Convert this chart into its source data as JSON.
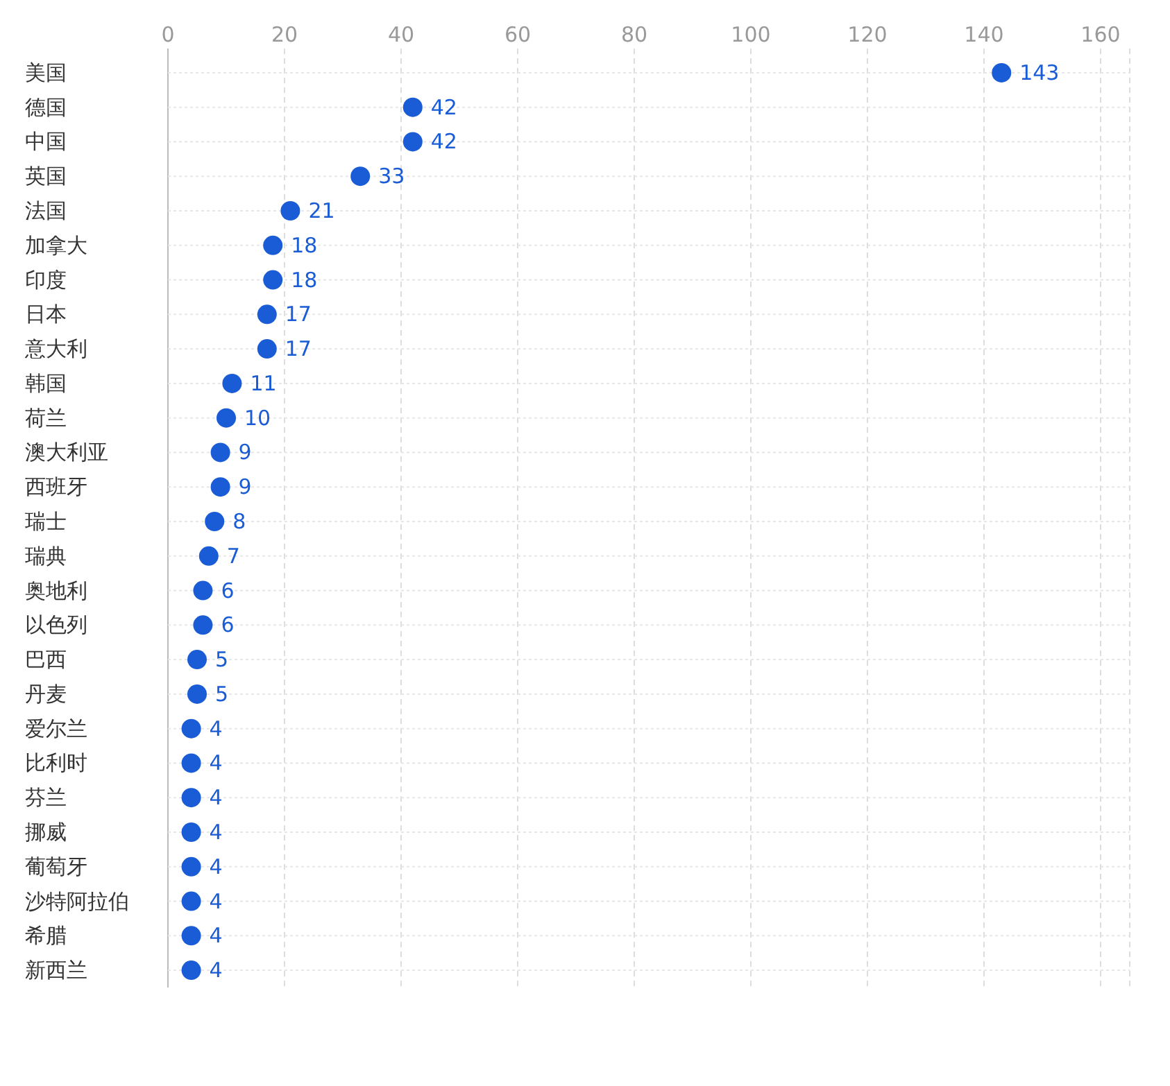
{
  "chart_data": {
    "type": "scatter",
    "orientation": "horizontal",
    "categories": [
      "美国",
      "德国",
      "中国",
      "英国",
      "法国",
      "加拿大",
      "印度",
      "日本",
      "意大利",
      "韩国",
      "荷兰",
      "澳大利亚",
      "西班牙",
      "瑞士",
      "瑞典",
      "奥地利",
      "以色列",
      "巴西",
      "丹麦",
      "爱尔兰",
      "比利时",
      "芬兰",
      "挪威",
      "葡萄牙",
      "沙特阿拉伯",
      "希腊",
      "新西兰"
    ],
    "values": [
      143,
      42,
      42,
      33,
      21,
      18,
      18,
      17,
      17,
      11,
      10,
      9,
      9,
      8,
      7,
      6,
      6,
      5,
      5,
      4,
      4,
      4,
      4,
      4,
      4,
      4,
      4
    ],
    "color": "#1a5cd6",
    "xlim": [
      0,
      165
    ],
    "xticks": [
      0,
      20,
      40,
      60,
      80,
      100,
      120,
      140,
      160
    ],
    "grid": true,
    "data_labels": true,
    "marker": "circle"
  }
}
